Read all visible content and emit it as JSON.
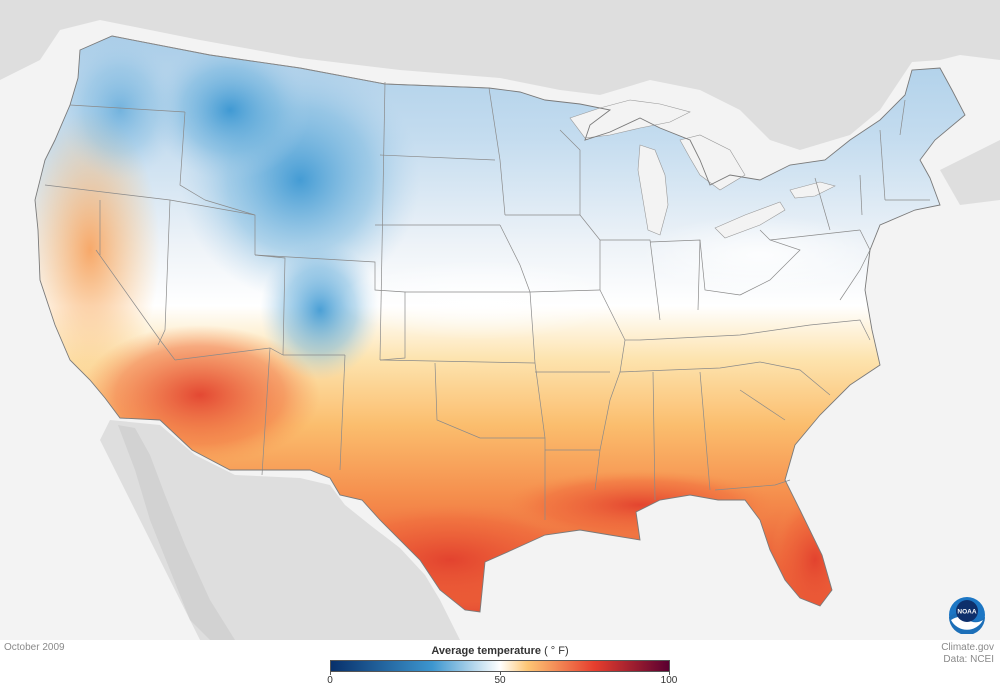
{
  "date_label": "October 2009",
  "credit": {
    "line1": "Climate.gov",
    "line2": "Data: NCEI"
  },
  "legend": {
    "title": "Average temperature",
    "unit": "( ° F)",
    "min_label": "0",
    "mid_label": "50",
    "max_label": "100",
    "range": [
      0,
      100
    ]
  },
  "logo": {
    "text": "NOAA"
  },
  "colors": {
    "cold": "#08306b",
    "cool": "#3d96cf",
    "neutral": "#ffffff",
    "warm": "#fdc776",
    "hot": "#e63e2e",
    "hottest": "#5a0030",
    "land_outside": "#dedede",
    "water": "#f3f3f3"
  }
}
